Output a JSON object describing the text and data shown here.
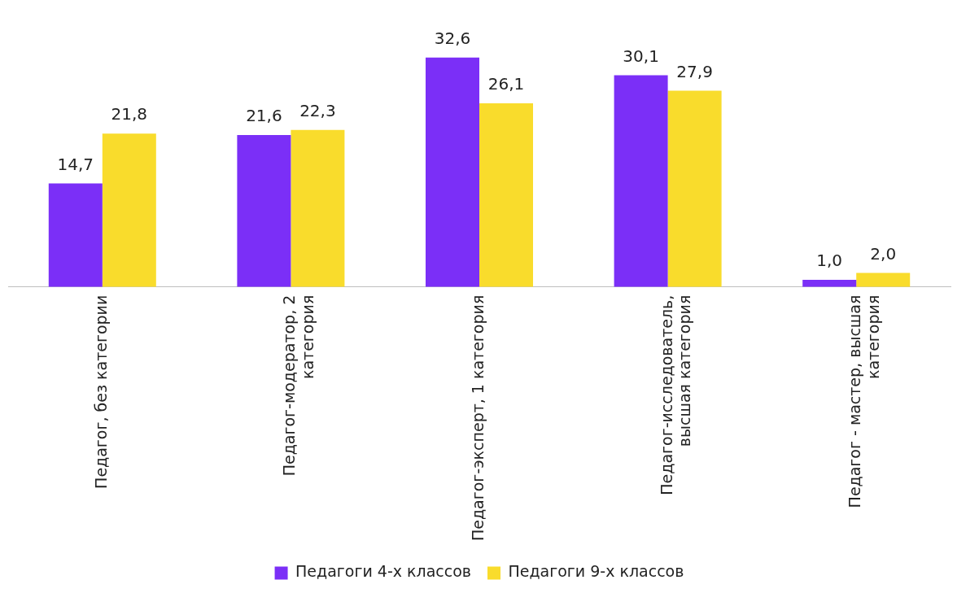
{
  "chart_data": {
    "type": "bar",
    "categories": [
      "Педагог, без категории",
      "Педагог-модератор, 2 категория",
      "Педагог-эксперт, 1 категория",
      "Педагог-исследователь, высшая категория",
      "Педагог - мастер, высшая категория"
    ],
    "series": [
      {
        "name": "Педагоги 4-х классов",
        "color": "#7b2ff7",
        "values": [
          14.7,
          21.6,
          32.6,
          30.1,
          1.0
        ],
        "value_labels": [
          "14,7",
          "21,6",
          "32,6",
          "30,1",
          "1,0"
        ]
      },
      {
        "name": "Педагоги 9-х классов",
        "color": "#f9dc2c",
        "values": [
          21.8,
          22.3,
          26.1,
          27.9,
          2.0
        ],
        "value_labels": [
          "21,8",
          "22,3",
          "26,1",
          "27,9",
          "2,0"
        ]
      }
    ],
    "tick_labels": "x",
    "grid": false,
    "legend": "bottom"
  }
}
